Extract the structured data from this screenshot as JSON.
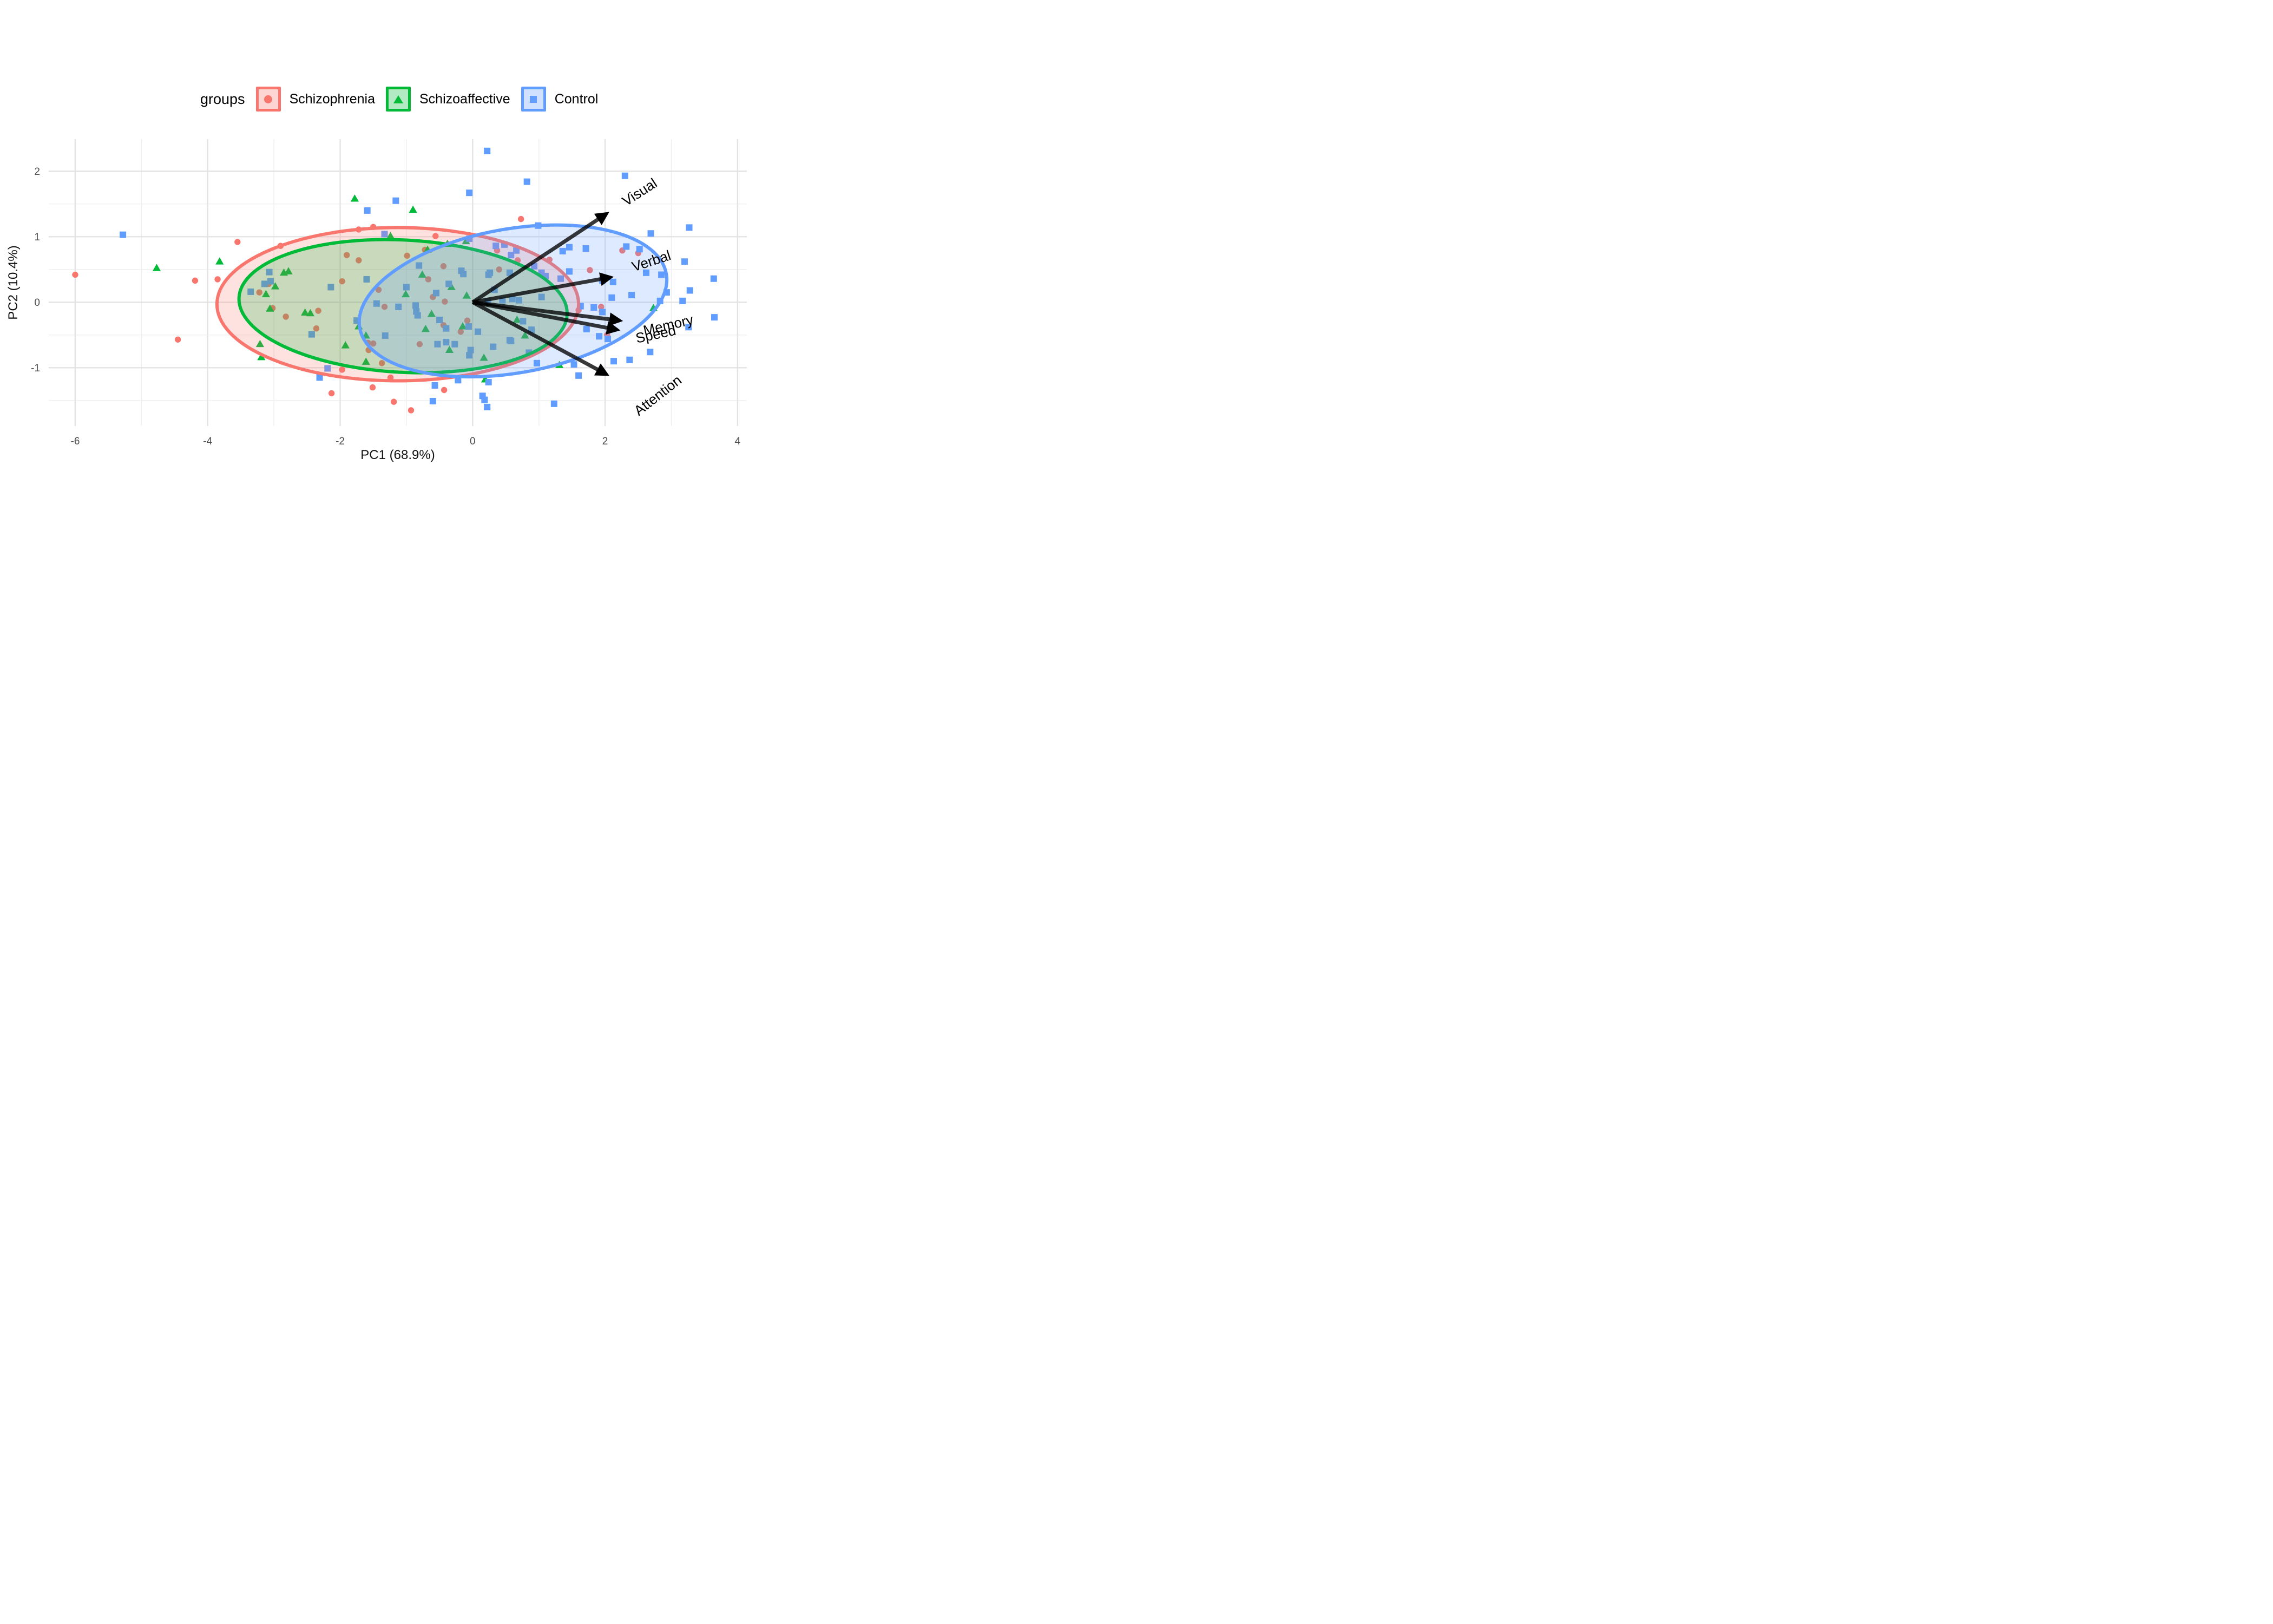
{
  "legend": {
    "title": "groups",
    "items": [
      {
        "label": "Schizophrenia",
        "shape": "circle",
        "color": "#F8766D"
      },
      {
        "label": "Schizoaffective",
        "shape": "triangle",
        "color": "#00BA38"
      },
      {
        "label": "Control",
        "shape": "square",
        "color": "#619CFF"
      }
    ]
  },
  "axes": {
    "x": {
      "title": "PC1 (68.9%)",
      "ticks": [
        -6,
        -4,
        -2,
        0,
        2,
        4
      ],
      "minor": [
        -5,
        -3,
        -1,
        1,
        3
      ],
      "range": [
        -6.4,
        4.14
      ]
    },
    "y": {
      "title": "PC2 (10.4%)",
      "ticks": [
        -1,
        0,
        1,
        2
      ],
      "minor": [
        -1.5,
        -0.5,
        0.5,
        1.5
      ],
      "range": [
        -1.89,
        2.49
      ]
    }
  },
  "colors": {
    "arrow": "#000000",
    "grid_major": "#e3e3e3",
    "grid_minor": "#efefef",
    "tick_text": "#4d4d4d",
    "axis_title_text": "#111111",
    "background": "#ffffff",
    "ellipse_fill_alpha": 0.21,
    "legend_key_fill_alpha": 0.3
  },
  "chart_data": {
    "type": "scatter",
    "title": "",
    "xlabel": "PC1 (68.9%)",
    "ylabel": "PC2 (10.4%)",
    "grid": "on",
    "legend_position": "top",
    "xlim": [
      -6.4,
      4.14
    ],
    "ylim": [
      -1.89,
      2.49
    ],
    "series": [
      {
        "name": "Schizophrenia",
        "shape": "circle",
        "color": "#F8766D",
        "points": [
          [
            -6.0,
            0.42
          ],
          [
            -4.45,
            -0.57
          ],
          [
            -4.19,
            0.33
          ],
          [
            -3.85,
            0.35
          ],
          [
            -3.55,
            0.92
          ],
          [
            -2.9,
            0.86
          ],
          [
            -3.22,
            0.15
          ],
          [
            -3.08,
            0.28
          ],
          [
            -3.02,
            -0.09
          ],
          [
            -2.82,
            -0.22
          ],
          [
            -2.36,
            -0.4
          ],
          [
            -2.33,
            -0.13
          ],
          [
            -2.13,
            -1.39
          ],
          [
            -1.97,
            -1.03
          ],
          [
            -1.97,
            0.32
          ],
          [
            -1.9,
            0.72
          ],
          [
            -1.72,
            1.11
          ],
          [
            -1.72,
            0.64
          ],
          [
            -1.58,
            -0.62
          ],
          [
            -1.57,
            -0.73
          ],
          [
            -1.51,
            -1.3
          ],
          [
            -1.5,
            -0.63
          ],
          [
            -1.5,
            1.15
          ],
          [
            -1.42,
            0.19
          ],
          [
            -1.37,
            -0.93
          ],
          [
            -1.33,
            -0.07
          ],
          [
            -1.24,
            -1.15
          ],
          [
            -1.19,
            -1.52
          ],
          [
            -0.99,
            0.71
          ],
          [
            -0.93,
            -1.65
          ],
          [
            -0.8,
            -0.64
          ],
          [
            -0.72,
            0.8
          ],
          [
            -0.67,
            0.35
          ],
          [
            -0.6,
            0.08
          ],
          [
            -0.56,
            1.01
          ],
          [
            -0.44,
            0.55
          ],
          [
            -0.44,
            -0.35
          ],
          [
            -0.43,
            -1.34
          ],
          [
            -0.42,
            0.01
          ],
          [
            -0.18,
            -0.45
          ],
          [
            -0.08,
            -0.28
          ],
          [
            0.37,
            0.79
          ],
          [
            0.4,
            0.5
          ],
          [
            0.68,
            0.64
          ],
          [
            0.73,
            1.27
          ],
          [
            1.16,
            0.65
          ],
          [
            1.6,
            -0.12
          ],
          [
            1.77,
            0.49
          ],
          [
            1.94,
            -0.07
          ],
          [
            1.95,
            -0.14
          ],
          [
            2.03,
            -0.5
          ],
          [
            2.26,
            0.79
          ],
          [
            2.5,
            0.75
          ]
        ]
      },
      {
        "name": "Schizoaffective",
        "shape": "triangle",
        "color": "#00BA38",
        "points": [
          [
            -4.77,
            0.52
          ],
          [
            -3.82,
            0.62
          ],
          [
            -3.21,
            -0.64
          ],
          [
            -3.19,
            -0.84
          ],
          [
            -3.12,
            0.12
          ],
          [
            -3.06,
            -0.1
          ],
          [
            -2.98,
            0.24
          ],
          [
            -2.85,
            0.45
          ],
          [
            -2.78,
            0.47
          ],
          [
            -2.53,
            -0.16
          ],
          [
            -2.45,
            -0.17
          ],
          [
            -1.92,
            -0.66
          ],
          [
            -1.78,
            1.58
          ],
          [
            -1.72,
            -0.37
          ],
          [
            -1.61,
            -0.51
          ],
          [
            -1.61,
            -0.91
          ],
          [
            -1.24,
            1.01
          ],
          [
            -1.01,
            0.12
          ],
          [
            -0.9,
            1.41
          ],
          [
            -0.76,
            0.42
          ],
          [
            -0.71,
            -0.41
          ],
          [
            -0.68,
            0.8
          ],
          [
            -0.62,
            -0.18
          ],
          [
            -0.38,
            0.89
          ],
          [
            -0.35,
            -0.73
          ],
          [
            -0.32,
            0.23
          ],
          [
            -0.15,
            -0.37
          ],
          [
            -0.1,
            0.93
          ],
          [
            -0.09,
            0.1
          ],
          [
            0.17,
            -0.85
          ],
          [
            0.19,
            -1.18
          ],
          [
            0.67,
            -0.27
          ],
          [
            0.79,
            -0.51
          ],
          [
            1.31,
            -0.96
          ],
          [
            2.73,
            -0.09
          ]
        ]
      },
      {
        "name": "Control",
        "shape": "square",
        "color": "#619CFF",
        "points": [
          [
            -5.28,
            1.03
          ],
          [
            -3.35,
            0.16
          ],
          [
            -3.14,
            0.28
          ],
          [
            -3.07,
            0.46
          ],
          [
            -3.05,
            0.32
          ],
          [
            -2.43,
            -0.49
          ],
          [
            -2.31,
            -1.15
          ],
          [
            -2.19,
            -1.01
          ],
          [
            -2.14,
            0.23
          ],
          [
            -1.75,
            -0.28
          ],
          [
            -1.6,
            0.35
          ],
          [
            -1.59,
            1.4
          ],
          [
            -1.45,
            -0.02
          ],
          [
            -1.33,
            1.04
          ],
          [
            -1.32,
            -0.51
          ],
          [
            -1.16,
            1.55
          ],
          [
            -1.12,
            -0.07
          ],
          [
            -1.0,
            0.23
          ],
          [
            -0.86,
            -0.05
          ],
          [
            -0.85,
            -0.14
          ],
          [
            -0.83,
            -0.2
          ],
          [
            -0.81,
            0.56
          ],
          [
            -0.6,
            -1.51
          ],
          [
            -0.57,
            -1.27
          ],
          [
            -0.55,
            0.14
          ],
          [
            -0.53,
            -0.64
          ],
          [
            -0.5,
            -0.27
          ],
          [
            -0.4,
            -0.61
          ],
          [
            -0.4,
            -0.4
          ],
          [
            -0.36,
            0.28
          ],
          [
            -0.27,
            -0.64
          ],
          [
            -0.22,
            -1.19
          ],
          [
            -0.17,
            0.48
          ],
          [
            -0.14,
            0.43
          ],
          [
            -0.06,
            -0.37
          ],
          [
            -0.05,
            0.97
          ],
          [
            -0.05,
            1.67
          ],
          [
            -0.03,
            -0.73
          ],
          [
            -0.05,
            -0.81
          ],
          [
            0.08,
            -0.45
          ],
          [
            0.15,
            -1.43
          ],
          [
            0.18,
            -1.49
          ],
          [
            0.22,
            -1.6
          ],
          [
            0.22,
            2.31
          ],
          [
            0.23,
            0.01
          ],
          [
            0.24,
            0.42
          ],
          [
            0.24,
            -1.22
          ],
          [
            0.26,
            0.45
          ],
          [
            0.31,
            -0.68
          ],
          [
            0.33,
            0.19
          ],
          [
            0.35,
            0.86
          ],
          [
            0.45,
            0.03
          ],
          [
            0.48,
            0.88
          ],
          [
            0.56,
            -0.58
          ],
          [
            0.56,
            0.45
          ],
          [
            0.58,
            -0.59
          ],
          [
            0.58,
            0.72
          ],
          [
            0.6,
            0.05
          ],
          [
            0.66,
            0.79
          ],
          [
            0.7,
            0.03
          ],
          [
            0.76,
            -0.29
          ],
          [
            0.82,
            1.84
          ],
          [
            0.85,
            -0.77
          ],
          [
            0.89,
            -0.42
          ],
          [
            0.93,
            0.55
          ],
          [
            0.97,
            -0.93
          ],
          [
            0.99,
            1.17
          ],
          [
            1.04,
            0.45
          ],
          [
            1.04,
            0.08
          ],
          [
            1.1,
            0.4
          ],
          [
            1.23,
            -1.55
          ],
          [
            1.33,
            0.36
          ],
          [
            1.36,
            0.78
          ],
          [
            1.46,
            0.84
          ],
          [
            1.46,
            0.47
          ],
          [
            1.53,
            -0.95
          ],
          [
            1.6,
            -1.12
          ],
          [
            1.63,
            -0.06
          ],
          [
            1.71,
            0.82
          ],
          [
            1.72,
            -0.41
          ],
          [
            1.83,
            -0.08
          ],
          [
            1.91,
            -0.52
          ],
          [
            1.96,
            0.33
          ],
          [
            1.96,
            -0.15
          ],
          [
            2.04,
            -0.56
          ],
          [
            2.1,
            0.07
          ],
          [
            2.12,
            0.31
          ],
          [
            2.13,
            -0.9
          ],
          [
            2.3,
            1.93
          ],
          [
            2.32,
            0.85
          ],
          [
            2.37,
            -0.88
          ],
          [
            2.4,
            0.11
          ],
          [
            2.52,
            0.81
          ],
          [
            2.62,
            0.45
          ],
          [
            2.68,
            -0.76
          ],
          [
            2.69,
            1.05
          ],
          [
            2.83,
            0.02
          ],
          [
            2.85,
            0.42
          ],
          [
            2.93,
            0.15
          ],
          [
            3.17,
            0.02
          ],
          [
            3.2,
            0.62
          ],
          [
            3.26,
            -0.38
          ],
          [
            3.27,
            1.14
          ],
          [
            3.28,
            0.18
          ],
          [
            3.64,
            0.36
          ],
          [
            3.65,
            -0.23
          ]
        ]
      }
    ],
    "ellipses": [
      {
        "group": "Schizophrenia",
        "color": "#F8766D",
        "cx": -1.13,
        "cy": -0.03,
        "rx": 2.73,
        "ry": 1.17,
        "angle": 0
      },
      {
        "group": "Schizoaffective",
        "color": "#00BA38",
        "cx": -1.05,
        "cy": -0.06,
        "rx": 2.48,
        "ry": 1.01,
        "angle": -3
      },
      {
        "group": "Control",
        "color": "#619CFF",
        "cx": 0.61,
        "cy": 0.02,
        "rx": 2.35,
        "ry": 1.1,
        "angle": 10
      }
    ],
    "loadings": [
      {
        "name": "Visual",
        "x": 2.02,
        "y": 1.35,
        "label_x": 2.56,
        "label_y": 1.62,
        "label_angle": -33
      },
      {
        "name": "Verbal",
        "x": 2.08,
        "y": 0.38,
        "label_x": 2.72,
        "label_y": 0.56,
        "label_angle": -18
      },
      {
        "name": "Memory",
        "x": 2.22,
        "y": -0.28,
        "label_x": 2.97,
        "label_y": -0.42,
        "label_angle": -13
      },
      {
        "name": "Speed",
        "x": 2.18,
        "y": -0.42,
        "label_x": 2.78,
        "label_y": -0.56,
        "label_angle": -12
      },
      {
        "name": "Attention",
        "x": 2.02,
        "y": -1.1,
        "label_x": 2.84,
        "label_y": -1.48,
        "label_angle": -38
      }
    ]
  }
}
